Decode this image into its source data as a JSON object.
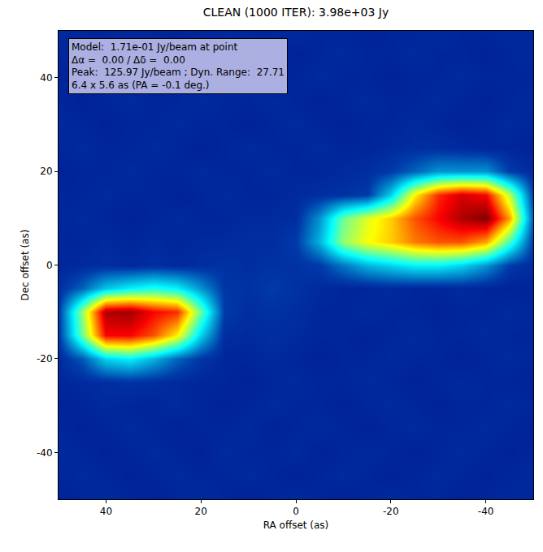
{
  "chart_data": {
    "type": "heatmap",
    "title": "CLEAN (1000 ITER): 3.98e+03 Jy",
    "xlabel": "RA offset (as)",
    "ylabel": "Dec offset (as)",
    "annotation": [
      "Model:  1.71e-01 Jy/beam at point",
      "Δα =  0.00 / Δδ =  0.00",
      "Peak:  125.97 Jy/beam ; Dyn. Range:  27.71",
      "6.4 x 5.6 as (PA = -0.1 deg.)"
    ],
    "color": "Jet",
    "x": [
      50,
      45,
      40,
      35,
      30,
      25,
      20,
      15,
      10,
      5,
      0,
      -5,
      -10,
      -15,
      -20,
      -25,
      -30,
      -35,
      -40,
      -45,
      -50
    ],
    "y": [
      -50,
      -45,
      -40,
      -35,
      -30,
      -25,
      -20,
      -15,
      -10,
      -5,
      0,
      5,
      10,
      15,
      20,
      25,
      30,
      35,
      40,
      45,
      50
    ],
    "z": [
      [
        9,
        10,
        11,
        10,
        9,
        10,
        11,
        10,
        9,
        10,
        11,
        10,
        9,
        10,
        11,
        10,
        10,
        9,
        10,
        11,
        10
      ],
      [
        10,
        11,
        10,
        9,
        10,
        11,
        10,
        10,
        11,
        10,
        9,
        10,
        11,
        10,
        9,
        10,
        11,
        10,
        9,
        10,
        11
      ],
      [
        11,
        10,
        9,
        10,
        11,
        10,
        9,
        11,
        10,
        10,
        11,
        9,
        10,
        11,
        10,
        9,
        10,
        11,
        10,
        9,
        10
      ],
      [
        10,
        9,
        10,
        11,
        10,
        9,
        10,
        10,
        11,
        9,
        10,
        11,
        10,
        9,
        10,
        11,
        10,
        10,
        11,
        10,
        9
      ],
      [
        9,
        10,
        11,
        10,
        10,
        11,
        10,
        9,
        10,
        11,
        10,
        10,
        9,
        10,
        11,
        10,
        9,
        10,
        10,
        11,
        10
      ],
      [
        10,
        11,
        12,
        13,
        12,
        11,
        10,
        10,
        9,
        10,
        11,
        10,
        10,
        11,
        10,
        9,
        10,
        11,
        10,
        10,
        9
      ],
      [
        11,
        20,
        40,
        45,
        35,
        22,
        14,
        10,
        10,
        11,
        10,
        9,
        10,
        10,
        11,
        10,
        10,
        9,
        10,
        11,
        10
      ],
      [
        14,
        60,
        110,
        110,
        100,
        80,
        40,
        12,
        11,
        12,
        11,
        10,
        10,
        9,
        10,
        11,
        10,
        10,
        11,
        10,
        10
      ],
      [
        15,
        65,
        120,
        122,
        110,
        105,
        60,
        15,
        12,
        13,
        12,
        10,
        10,
        11,
        10,
        10,
        9,
        10,
        10,
        11,
        10
      ],
      [
        12,
        22,
        38,
        45,
        50,
        45,
        30,
        14,
        13,
        15,
        13,
        11,
        10,
        10,
        11,
        10,
        10,
        11,
        10,
        9,
        10
      ],
      [
        10,
        11,
        12,
        11,
        12,
        11,
        12,
        13,
        12,
        13,
        13,
        15,
        25,
        35,
        40,
        45,
        45,
        40,
        30,
        15,
        11
      ],
      [
        10,
        10,
        11,
        10,
        11,
        10,
        11,
        11,
        12,
        12,
        15,
        35,
        65,
        78,
        85,
        95,
        100,
        100,
        90,
        55,
        15
      ],
      [
        10,
        11,
        10,
        9,
        10,
        11,
        10,
        10,
        11,
        11,
        12,
        30,
        60,
        75,
        85,
        100,
        110,
        120,
        126,
        90,
        20
      ],
      [
        10,
        10,
        11,
        10,
        10,
        9,
        10,
        11,
        10,
        10,
        11,
        12,
        13,
        15,
        40,
        80,
        105,
        115,
        110,
        70,
        15
      ],
      [
        9,
        10,
        10,
        11,
        10,
        10,
        11,
        10,
        10,
        11,
        10,
        10,
        11,
        12,
        15,
        22,
        30,
        30,
        30,
        15,
        11
      ],
      [
        10,
        11,
        10,
        10,
        11,
        10,
        9,
        10,
        11,
        10,
        10,
        11,
        10,
        10,
        11,
        12,
        12,
        11,
        10,
        10,
        9
      ],
      [
        11,
        10,
        9,
        10,
        10,
        11,
        10,
        10,
        9,
        10,
        11,
        10,
        9,
        10,
        10,
        11,
        10,
        9,
        10,
        11,
        10
      ],
      [
        10,
        9,
        10,
        11,
        10,
        10,
        11,
        10,
        10,
        11,
        10,
        9,
        10,
        11,
        10,
        10,
        11,
        10,
        9,
        10,
        11
      ],
      [
        9,
        10,
        11,
        10,
        9,
        10,
        10,
        11,
        10,
        9,
        10,
        11,
        10,
        10,
        9,
        10,
        10,
        11,
        10,
        10,
        10
      ],
      [
        10,
        11,
        10,
        9,
        10,
        11,
        10,
        10,
        11,
        10,
        9,
        10,
        11,
        10,
        10,
        11,
        10,
        10,
        9,
        10,
        11
      ],
      [
        11,
        10,
        10,
        11,
        10,
        9,
        10,
        11,
        10,
        10,
        11,
        10,
        10,
        9,
        10,
        10,
        11,
        10,
        10,
        11,
        10
      ]
    ],
    "zlim": [
      0,
      126
    ],
    "xlim": [
      50,
      -50
    ],
    "ylim": [
      -50,
      50
    ],
    "xticks": [
      40,
      20,
      0,
      -20,
      -40
    ],
    "yticks": [
      -40,
      -20,
      0,
      20,
      40
    ],
    "grid": false
  }
}
